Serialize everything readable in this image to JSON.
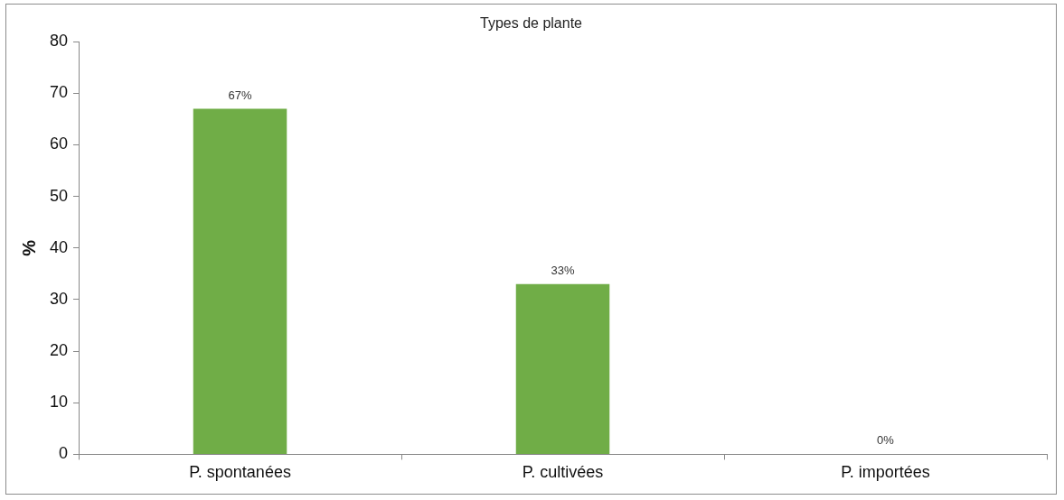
{
  "chart_data": {
    "type": "bar",
    "title": "Types de plante",
    "ylabel": "%",
    "categories": [
      "P. spontanées",
      "P. cultivées",
      "P. importées"
    ],
    "values": [
      67,
      33,
      0
    ],
    "color": "#70ad47",
    "value_labels": [
      "67%",
      "33%",
      "0%"
    ],
    "ylim": [
      0,
      80
    ],
    "yticks": [
      0,
      10,
      20,
      30,
      40,
      50,
      60,
      70,
      80
    ],
    "grid": false,
    "legend": false
  }
}
